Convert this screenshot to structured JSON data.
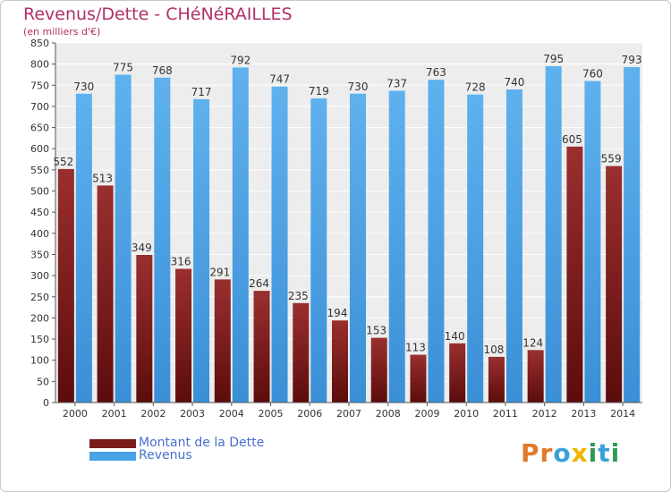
{
  "chart_data": {
    "type": "bar",
    "title": "Revenus/Dette - CHéNéRAILLES",
    "subtitle": "(en milliers d'€)",
    "categories": [
      "2000",
      "2001",
      "2002",
      "2003",
      "2004",
      "2005",
      "2006",
      "2007",
      "2008",
      "2009",
      "2010",
      "2011",
      "2012",
      "2013",
      "2014"
    ],
    "series": [
      {
        "name": "Montant de la Dette",
        "color": "#7a1c1c",
        "values": [
          552,
          513,
          349,
          316,
          291,
          264,
          235,
          194,
          153,
          113,
          140,
          108,
          124,
          605,
          559
        ]
      },
      {
        "name": "Revenus",
        "color": "#4aa3e6",
        "values": [
          730,
          775,
          768,
          717,
          792,
          747,
          719,
          730,
          737,
          763,
          728,
          740,
          795,
          760,
          793
        ]
      }
    ],
    "ylim": [
      0,
      850
    ],
    "yticks": [
      0,
      50,
      100,
      150,
      200,
      250,
      300,
      350,
      400,
      450,
      500,
      550,
      600,
      650,
      700,
      750,
      800,
      850
    ],
    "grid": true,
    "legend": [
      {
        "label": "Montant de la Dette",
        "color": "#7a1c1c"
      },
      {
        "label": "Revenus",
        "color": "#4aa3e6"
      }
    ]
  },
  "brand": {
    "name": "Proxiti",
    "letters": [
      "P",
      "r",
      "o",
      "x",
      "i",
      "t",
      "i"
    ]
  }
}
